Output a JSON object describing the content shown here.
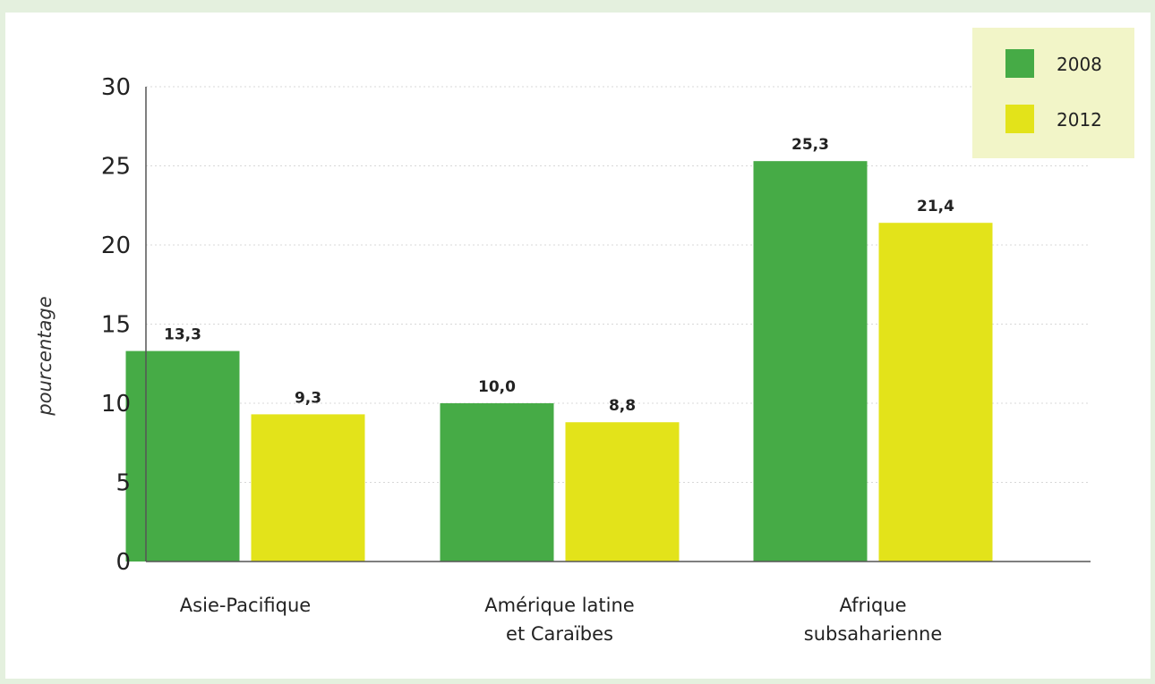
{
  "colors": {
    "background": "#e4f0de",
    "series_2008": "#46ab46",
    "series_2012": "#e3e31a",
    "legend_bg": "#f2f5c8",
    "grid": "#d8d8d8",
    "axis": "#555555"
  },
  "chart_data": {
    "type": "bar",
    "title": "",
    "xlabel": "",
    "ylabel": "pourcentage",
    "ylim": [
      0,
      30
    ],
    "yticks": [
      "0",
      "5",
      "10",
      "15",
      "20",
      "25",
      "30"
    ],
    "grid": "horizontal dotted",
    "legend_position": "top-right",
    "categories": [
      [
        "Asie-Pacifique"
      ],
      [
        "Amérique latine",
        "et Caraïbes"
      ],
      [
        "Afrique",
        "subsaharienne"
      ]
    ],
    "series": [
      {
        "name": "2008",
        "values": [
          13.3,
          10.0,
          25.3
        ],
        "labels": [
          "13,3",
          "10,0",
          "25,3"
        ]
      },
      {
        "name": "2012",
        "values": [
          9.3,
          8.8,
          21.4
        ],
        "labels": [
          "9,3",
          "8,8",
          "21,4"
        ]
      }
    ]
  }
}
